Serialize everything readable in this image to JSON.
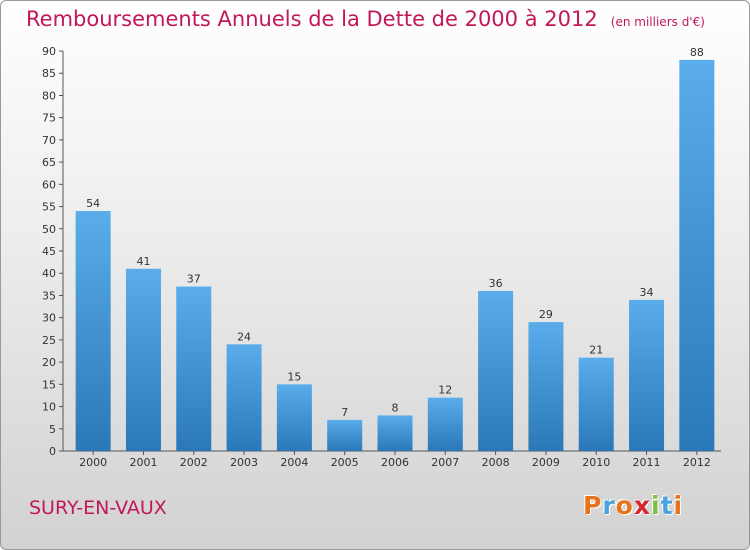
{
  "title": "Remboursements Annuels de la Dette de 2000 à 2012",
  "unit_note": "(en milliers d'€)",
  "commune": "SURY-EN-VAUX",
  "logo": {
    "text": "Proxiti",
    "colors": [
      "#e8731e",
      "#4aa3df",
      "#e8731e",
      "#d6262f",
      "#7ac143",
      "#4aa3df",
      "#e8731e"
    ]
  },
  "colors": {
    "title": "#c2185b",
    "bar_light": "#5aaceb",
    "bar_dark": "#2a78b8"
  },
  "chart_data": {
    "type": "bar",
    "categories": [
      "2000",
      "2001",
      "2002",
      "2003",
      "2004",
      "2005",
      "2006",
      "2007",
      "2008",
      "2009",
      "2010",
      "2011",
      "2012"
    ],
    "values": [
      54,
      41,
      37,
      24,
      15,
      7,
      8,
      12,
      36,
      29,
      21,
      34,
      88
    ],
    "ylim": [
      0,
      90
    ],
    "yticks": [
      0,
      5,
      10,
      15,
      20,
      25,
      30,
      35,
      40,
      45,
      50,
      55,
      60,
      65,
      70,
      75,
      80,
      85,
      90
    ],
    "grid": false,
    "data_labels": true
  }
}
